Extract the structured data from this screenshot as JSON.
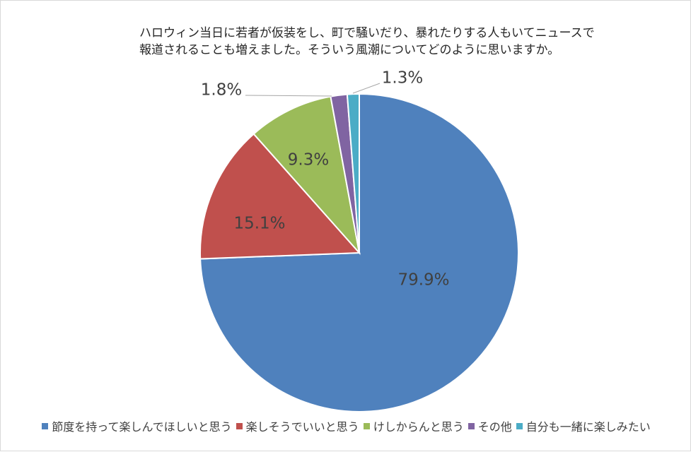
{
  "chart_data": {
    "type": "pie",
    "title": "ハロウィン当日に若者が仮装をし、町で騒いだり、暴れたりする人もいてニュースで報道されることも増えました。そういう風潮についてどのように思いますか。",
    "title_lines": [
      "ハロウィン当日に若者が仮装をし、町で騒いだり、暴れたりする人もいてニュースで",
      "報道されることも増えました。そういう風潮についてどのように思いますか。"
    ],
    "categories": [
      "節度を持って楽しんでほしいと思う",
      "楽しそうでいいと思う",
      "けしからんと思う",
      "その他",
      "自分も一緒に楽しみたい"
    ],
    "values": [
      79.9,
      15.1,
      9.3,
      1.8,
      1.3
    ],
    "labels": [
      "79.9%",
      "15.1%",
      "9.3%",
      "1.8%",
      "1.3%"
    ],
    "colors": [
      "#4f81bd",
      "#c0504d",
      "#9bbb59",
      "#8064a2",
      "#4bacc6"
    ],
    "start_angle": "12 o'clock",
    "direction": "clockwise",
    "legend_position": "bottom"
  }
}
